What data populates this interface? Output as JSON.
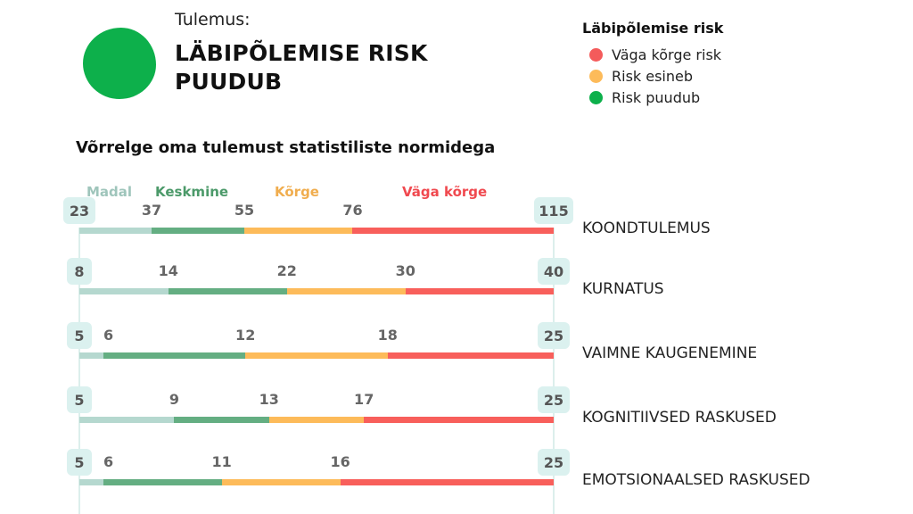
{
  "result": {
    "label": "Tulemus:",
    "title_line1": "LÄBIPÕLEMISE RISK",
    "title_line2": "PUUDUB",
    "indicator_color": "#0db04b"
  },
  "legend": {
    "title": "Läbipõlemise risk",
    "items": [
      {
        "label": "Väga kõrge risk",
        "color": "#f45b5b"
      },
      {
        "label": "Risk esineb",
        "color": "#fdbb5a"
      },
      {
        "label": "Risk puudub",
        "color": "#0db04b"
      }
    ]
  },
  "chart_data": {
    "type": "bar",
    "title": "Võrrelge oma tulemust statistiliste normidega",
    "categories": [
      {
        "label": "Madal",
        "color": "#9fc5bb",
        "bar_color": "#b5d8cf"
      },
      {
        "label": "Keskmine",
        "color": "#4c9a6a",
        "bar_color": "#64ae82"
      },
      {
        "label": "Kõrge",
        "color": "#f0ad4e",
        "bar_color": "#fdbb5a"
      },
      {
        "label": "Väga kõrge",
        "color": "#f0494f",
        "bar_color": "#f85f5b"
      }
    ],
    "rows": [
      {
        "label": "KOONDTULEMUS",
        "min": 23,
        "thresholds": [
          37,
          55,
          76
        ],
        "max": 115
      },
      {
        "label": "KURNATUS",
        "min": 8,
        "thresholds": [
          14,
          22,
          30
        ],
        "max": 40
      },
      {
        "label": "VAIMNE KAUGENEMINE",
        "min": 5,
        "thresholds": [
          6,
          12,
          18
        ],
        "max": 25
      },
      {
        "label": "KOGNITIIVSED RASKUSED",
        "min": 5,
        "thresholds": [
          9,
          13,
          17
        ],
        "max": 25
      },
      {
        "label": "EMOTSIONAALSED RASKUSED",
        "min": 5,
        "thresholds": [
          6,
          11,
          16
        ],
        "max": 25
      }
    ]
  }
}
